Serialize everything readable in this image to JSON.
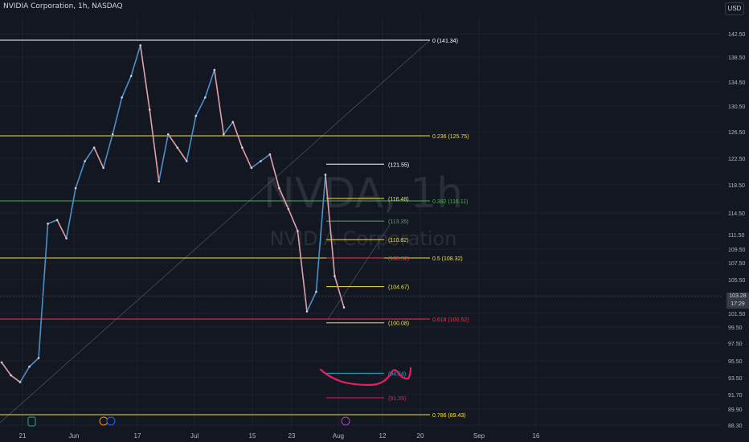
{
  "header": {
    "title": "NVIDIA Corporation, 1h, NASDAQ",
    "currency": "USD",
    "watermark_symbol": "NVDA, 1h",
    "watermark_name": "NVIDIA Corporation"
  },
  "current_price": {
    "value": "103.28",
    "countdown": "17:29",
    "color": "#363a45"
  },
  "colors": {
    "background": "#131722",
    "grid": "#1e222d",
    "up": "#4a90c8",
    "down": "#e0a0a8",
    "fib_white": "#ffffff",
    "fib_yellow": "#f0e040",
    "fib_green": "#4caf50",
    "fib_red": "#f23645",
    "cyan": "#00bcd4",
    "magenta": "#e91e63"
  },
  "chart_data": {
    "type": "line",
    "title": "NVIDIA Corporation, 1h, NASDAQ",
    "x_ticks": [
      "21",
      "Jun",
      "17",
      "Jul",
      "15",
      "23",
      "Aug",
      "12",
      "20",
      "Sep",
      "16"
    ],
    "y_ticks": [
      "142.50",
      "138.50",
      "134.50",
      "130.50",
      "126.50",
      "122.50",
      "118.50",
      "114.50",
      "111.50",
      "109.50",
      "107.50",
      "105.50",
      "103.50",
      "101.50",
      "99.50",
      "97.50",
      "95.50",
      "93.50",
      "91.70",
      "89.90",
      "88.30"
    ],
    "ylim": [
      88.3,
      142.5
    ],
    "grid": true,
    "series": [
      {
        "x": [
          0,
          2,
          4,
          6,
          8,
          10,
          12,
          14,
          16,
          18,
          20,
          22,
          24,
          26,
          28,
          30,
          32,
          34,
          36,
          38,
          40,
          42,
          44,
          46,
          48,
          50,
          52,
          54,
          56,
          58,
          60,
          62,
          64,
          66,
          68,
          70,
          72,
          74
        ],
        "values": [
          95.5,
          94.0,
          93.2,
          95.0,
          96.0,
          113.0,
          113.5,
          111.0,
          118.0,
          122.0,
          124.0,
          121.0,
          126.0,
          132.0,
          135.5,
          140.5,
          130.0,
          119.0,
          126.0,
          124.0,
          122.0,
          129.0,
          132.0,
          136.5,
          126.0,
          128.0,
          124.0,
          121.0,
          122.0,
          123.0,
          118.0,
          115.0,
          112.0,
          101.5,
          104.0,
          120.0,
          106.0,
          102.0
        ]
      }
    ],
    "fib_retracement": [
      {
        "level": "0",
        "price": 141.34,
        "label": "0 (141.34)",
        "color": "#ffffff"
      },
      {
        "level": "0.236",
        "price": 125.75,
        "label": "0.236 (125.75)",
        "color": "#f0e040"
      },
      {
        "level": "0.382",
        "price": 116.11,
        "label": "0.382 (116.11)",
        "color": "#4caf50"
      },
      {
        "level": "0.5",
        "price": 108.32,
        "label": "0.5 (108.32)",
        "color": "#f0e040"
      },
      {
        "level": "0.618",
        "price": 100.52,
        "label": "0.618 (100.52)",
        "color": "#f23645"
      },
      {
        "level": "0.786",
        "price": 89.43,
        "label": "0.786 (89.43)",
        "color": "#f0e040"
      }
    ],
    "secondary_fib": [
      {
        "price": 121.55,
        "label": "(121.55)",
        "color": "#ffffff"
      },
      {
        "price": 116.48,
        "label": "(116.48)",
        "color": "#f0e040"
      },
      {
        "price": 113.35,
        "label": "(113.35)",
        "color": "#4caf50"
      },
      {
        "price": 110.82,
        "label": "(110.82)",
        "color": "#f0e040"
      },
      {
        "price": 108.32,
        "label": "(108.32)",
        "color": "#f23645"
      },
      {
        "price": 104.67,
        "label": "(104.67)",
        "color": "#f0e040"
      },
      {
        "price": 100.08,
        "label": "(100.08)",
        "color": "#f0e040"
      },
      {
        "price": 94.24,
        "label": "(94.24)",
        "color": "#00bcd4"
      },
      {
        "price": 91.39,
        "label": "(91.39)",
        "color": "#e91e63"
      }
    ]
  }
}
